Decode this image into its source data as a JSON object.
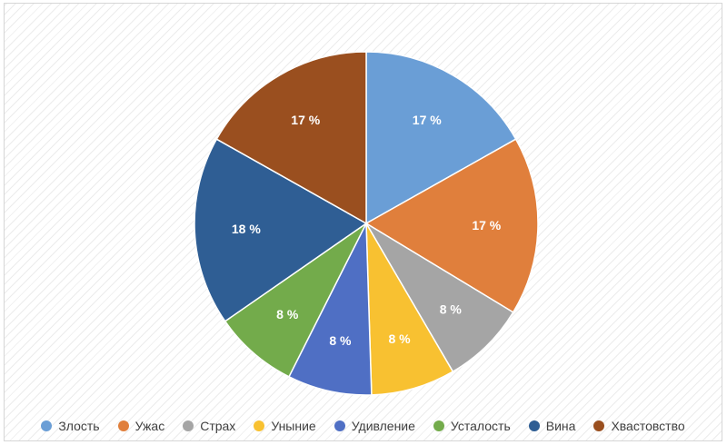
{
  "chart_data": {
    "type": "pie",
    "title": "",
    "slices": [
      {
        "name": "Злость",
        "value": 17,
        "label": "17 %",
        "color": "#6a9ed6"
      },
      {
        "name": "Ужас",
        "value": 17,
        "label": "17 %",
        "color": "#e07f3c"
      },
      {
        "name": "Страх",
        "value": 8,
        "label": "8 %",
        "color": "#a5a5a5"
      },
      {
        "name": "Уныние",
        "value": 8,
        "label": "8 %",
        "color": "#f8c131"
      },
      {
        "name": "Удивление",
        "value": 8,
        "label": "8 %",
        "color": "#4f6fc4"
      },
      {
        "name": "Усталость",
        "value": 8,
        "label": "8 %",
        "color": "#73ab4b"
      },
      {
        "name": "Вина",
        "value": 18,
        "label": "18 %",
        "color": "#2f5e94"
      },
      {
        "name": "Хвастовство",
        "value": 17,
        "label": "17 %",
        "color": "#9a4f1f"
      }
    ],
    "legend_position": "bottom",
    "start_angle": "12 o'clock",
    "direction": "clockwise"
  }
}
